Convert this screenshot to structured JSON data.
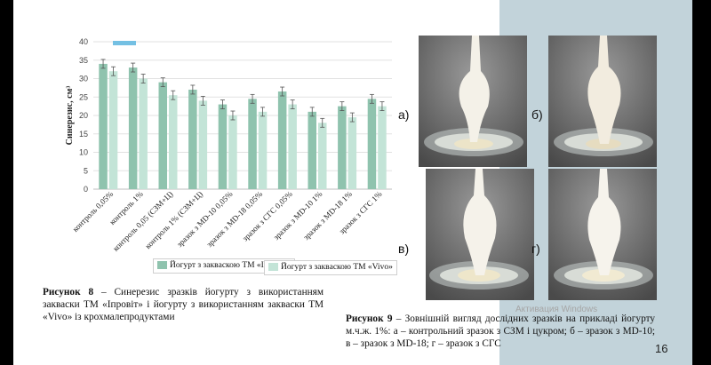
{
  "chart_data": {
    "type": "bar",
    "ylabel": "Синерезис, см³",
    "ylim": [
      0,
      40
    ],
    "yticks": [
      0,
      5,
      10,
      15,
      20,
      25,
      30,
      35,
      40
    ],
    "categories": [
      "контроль 0,05%",
      "контроль 1%",
      "контроль 0,05 (СЗМ+Ц)",
      "контроль 1% (СЗМ+Ц)",
      "зразок з MD-10 0,05%",
      "зразок з MD-18 0,05%",
      "зразок з СГС 0,05%",
      "зразок з MD-10 1%",
      "зразок з MD-18 1%",
      "зразок з СГС 1%"
    ],
    "series": [
      {
        "name": "Йогурт з заквaскою ТМ «Іпровіт»",
        "color": "#8fc3ae",
        "values": [
          34,
          33,
          29,
          27,
          23,
          24.5,
          26.5,
          21,
          22.5,
          24.5
        ]
      },
      {
        "name": "Йогурт з заквaскою ТМ «Vivo»",
        "color": "#c3e4d7",
        "values": [
          32,
          30,
          25.5,
          24,
          20,
          21,
          23,
          18,
          19.5,
          22.5
        ]
      }
    ],
    "errors": 1.2,
    "grid": true,
    "legend": [
      "below-center",
      "below-right"
    ]
  },
  "captions": {
    "fig8_label": "Рисунок 8",
    "fig8_text": " – Синерезис зразків йогурту з використанням закваски ТМ «Іпровіт» і йогурту з використанням закваски ТМ «Vivo» із крохмалепродуктами",
    "fig9_label": "Рисунок 9",
    "fig9_text": " – Зовнішній вигляд дослідних зразків на прикладі йогурту м.ч.ж. 1%: а – контрольний зразок з СЗМ і цукром; б – зразок з MD-10; в – зразок з MD-18; г – зразок з СГС"
  },
  "photos": {
    "labels": [
      "а)",
      "б)",
      "в)",
      "г)"
    ]
  },
  "watermark": "Активация Windows",
  "page_number": "16",
  "colors": {
    "background_panel": "#c2d3da",
    "legend_bar": "#74c0e3"
  }
}
